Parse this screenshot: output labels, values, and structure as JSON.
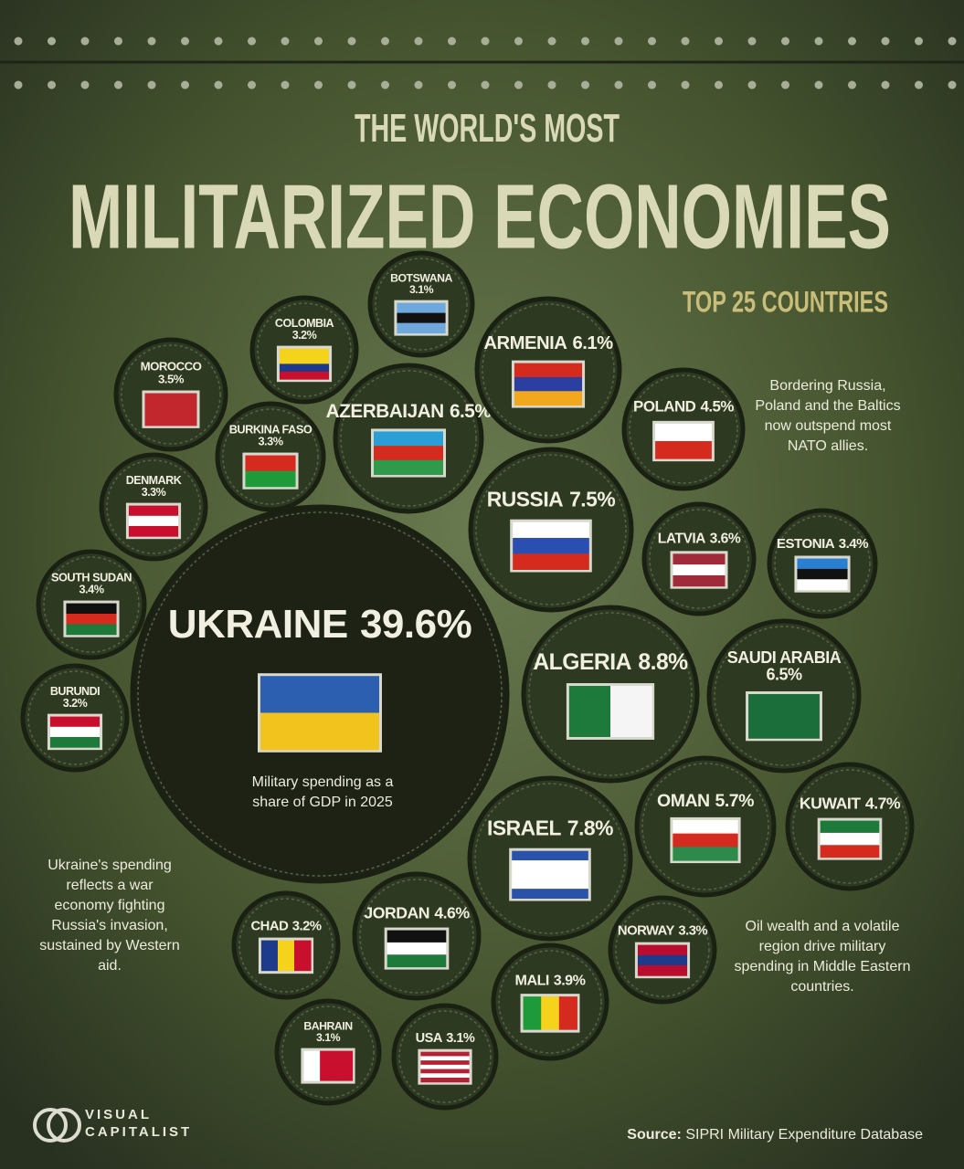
{
  "chart_data": {
    "type": "bubble",
    "title_top": "THE WORLD'S MOST",
    "title": "MILITARIZED ECONOMIES",
    "subtitle": "TOP 25 COUNTRIES",
    "note": "Military spending as a share of GDP in 2025",
    "annotations": [
      "Bordering Russia, Poland and the Baltics now outspend most NATO allies.",
      "Ukraine's spending reflects a war economy fighting Russia's invasion, sustained by Western aid.",
      "Oil wealth and a volatile region drive military spending in Middle Eastern countries."
    ],
    "source_label": "Source:",
    "source": "SIPRI Military Expenditure Database",
    "brand": [
      "VISUAL",
      "CAPITALIST"
    ],
    "categories": [
      "UKRAINE",
      "ALGERIA",
      "ISRAEL",
      "RUSSIA",
      "AZERBAIJAN",
      "SAUDI ARABIA",
      "ARMENIA",
      "OMAN",
      "KUWAIT",
      "JORDAN",
      "POLAND",
      "MALI",
      "LATVIA",
      "MOROCCO",
      "ESTONIA",
      "SOUTH SUDAN",
      "BURKINA FASO",
      "DENMARK",
      "NORWAY",
      "COLOMBIA",
      "BURUNDI",
      "CHAD",
      "BOTSWANA",
      "BAHRAIN",
      "USA"
    ],
    "values": [
      39.6,
      8.8,
      7.8,
      7.5,
      6.5,
      6.5,
      6.1,
      5.7,
      4.7,
      4.6,
      4.5,
      3.9,
      3.6,
      3.5,
      3.4,
      3.4,
      3.3,
      3.3,
      3.3,
      3.2,
      3.2,
      3.2,
      3.1,
      3.1,
      3.1
    ],
    "value_labels": [
      "39.6%",
      "8.8%",
      "7.8%",
      "7.5%",
      "6.5%",
      "6.5%",
      "6.1%",
      "5.7%",
      "4.7%",
      "4.6%",
      "4.5%",
      "3.9%",
      "3.6%",
      "3.5%",
      "3.4%",
      "3.4%",
      "3.3%",
      "3.3%",
      "3.3%",
      "3.2%",
      "3.2%",
      "3.2%",
      "3.1%",
      "3.1%",
      "3.1%"
    ],
    "color": "#2e3922"
  }
}
